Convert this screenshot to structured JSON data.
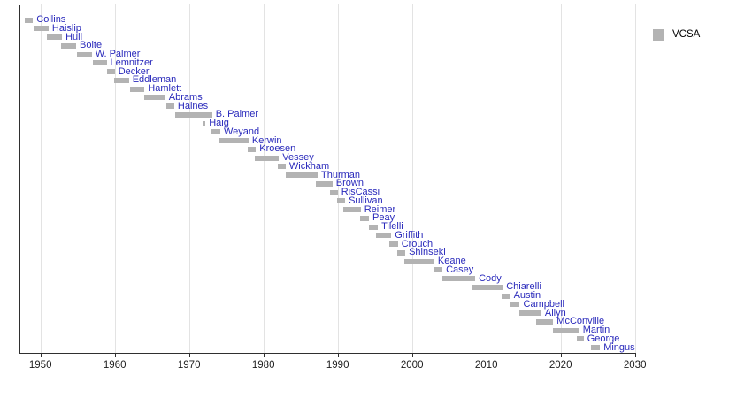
{
  "chart_data": {
    "type": "bar",
    "subtype": "horizontal-gantt-timeline",
    "title": "",
    "xlabel": "",
    "ylabel": "",
    "legend": {
      "label": "VCSA",
      "swatch_color": "#b3b3b3",
      "position": "top-right"
    },
    "x_axis": {
      "min": 1947.2,
      "max": 2030.5,
      "ticks": [
        1950,
        1960,
        1970,
        1980,
        1990,
        2000,
        2010,
        2020,
        2030
      ],
      "tick_labels": [
        "1950",
        "1960",
        "1970",
        "1980",
        "1990",
        "2000",
        "2010",
        "2020",
        "2030"
      ]
    },
    "grid": {
      "vertical_decade_lines": true,
      "color": "#e3e3e3"
    },
    "style": {
      "bar_color": "#b3b3b3",
      "label_color": "#2929bb",
      "axis_color": "#2f2f2f",
      "tick_label_color": "#1c1c1c",
      "background": "#ffffff"
    },
    "bars": [
      {
        "name": "Collins",
        "start": 1947.9,
        "end": 1949.0
      },
      {
        "name": "Haislip",
        "start": 1949.1,
        "end": 1951.1
      },
      {
        "name": "Hull",
        "start": 1950.9,
        "end": 1952.9
      },
      {
        "name": "Bolte",
        "start": 1952.8,
        "end": 1954.8
      },
      {
        "name": "W. Palmer",
        "start": 1954.9,
        "end": 1956.9
      },
      {
        "name": "Lemnitzer",
        "start": 1957.0,
        "end": 1958.9
      },
      {
        "name": "Decker",
        "start": 1959.0,
        "end": 1960.0
      },
      {
        "name": "Eddleman",
        "start": 1959.9,
        "end": 1961.9
      },
      {
        "name": "Hamlett",
        "start": 1962.0,
        "end": 1964.0
      },
      {
        "name": "Abrams",
        "start": 1964.0,
        "end": 1966.8
      },
      {
        "name": "Haines",
        "start": 1966.9,
        "end": 1968.0
      },
      {
        "name": "B. Palmer",
        "start": 1968.1,
        "end": 1973.1
      },
      {
        "name": "Haig",
        "start": 1971.8,
        "end": 1972.2
      },
      {
        "name": "Weyand",
        "start": 1972.9,
        "end": 1974.2
      },
      {
        "name": "Kerwin",
        "start": 1974.1,
        "end": 1978.0
      },
      {
        "name": "Kroesen",
        "start": 1977.9,
        "end": 1979.0
      },
      {
        "name": "Vessey",
        "start": 1978.8,
        "end": 1982.1
      },
      {
        "name": "Wickham",
        "start": 1981.9,
        "end": 1983.0
      },
      {
        "name": "Thurman",
        "start": 1983.0,
        "end": 1987.3
      },
      {
        "name": "Brown",
        "start": 1987.1,
        "end": 1989.3
      },
      {
        "name": "RisCassi",
        "start": 1989.0,
        "end": 1990.0
      },
      {
        "name": "Sullivan",
        "start": 1989.9,
        "end": 1991.0
      },
      {
        "name": "Reimer",
        "start": 1990.8,
        "end": 1993.1
      },
      {
        "name": "Peay",
        "start": 1993.0,
        "end": 1994.2
      },
      {
        "name": "Tilelli",
        "start": 1994.2,
        "end": 1995.4
      },
      {
        "name": "Griffith",
        "start": 1995.1,
        "end": 1997.2
      },
      {
        "name": "Crouch",
        "start": 1996.9,
        "end": 1998.1
      },
      {
        "name": "Shinseki",
        "start": 1998.0,
        "end": 1999.1
      },
      {
        "name": "Keane",
        "start": 1998.9,
        "end": 2003.0
      },
      {
        "name": "Casey",
        "start": 2002.9,
        "end": 2004.1
      },
      {
        "name": "Cody",
        "start": 2004.1,
        "end": 2008.5
      },
      {
        "name": "Chiarelli",
        "start": 2008.0,
        "end": 2012.2
      },
      {
        "name": "Austin",
        "start": 2012.0,
        "end": 2013.2
      },
      {
        "name": "Campbell",
        "start": 2013.2,
        "end": 2014.5
      },
      {
        "name": "Allyn",
        "start": 2014.4,
        "end": 2017.4
      },
      {
        "name": "McConville",
        "start": 2016.7,
        "end": 2019.0
      },
      {
        "name": "Martin",
        "start": 2019.0,
        "end": 2022.5
      },
      {
        "name": "George",
        "start": 2022.2,
        "end": 2023.1
      },
      {
        "name": "Mingus",
        "start": 2024.1,
        "end": 2025.3
      }
    ]
  }
}
